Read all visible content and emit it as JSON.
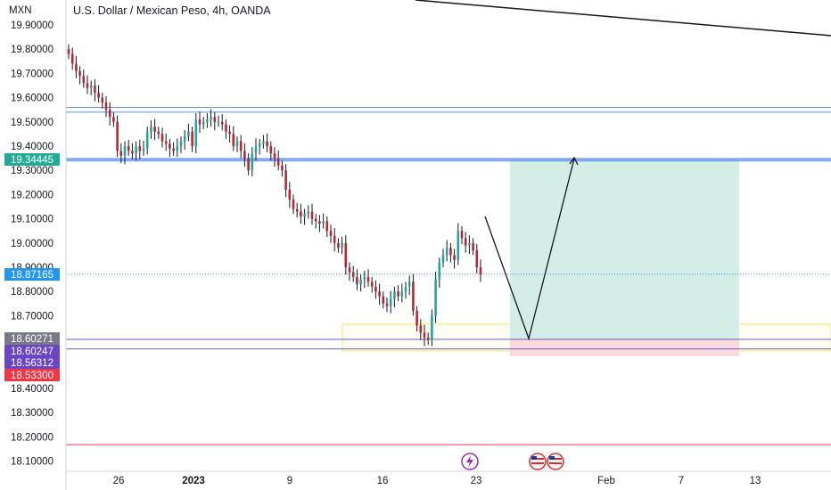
{
  "currency_label": "MXN",
  "symbol_title": "U.S. Dollar / Mexican Peso, 4h, OANDA",
  "colors": {
    "up": "#26a69a",
    "down": "#b22833",
    "wick": "#131722",
    "line_blue": "#5b8ef0",
    "line_purple": "#6a5acd",
    "line_red": "#f23645",
    "yellow_zone": "#f5e663",
    "profit_zone": "#d4ede6",
    "stop_zone": "#fbd9dc",
    "last_price": "#2196f3"
  },
  "icons": {
    "lightning": "lightning-icon",
    "flag": "us-flag-icon"
  },
  "chart_data": {
    "type": "candlestick",
    "title": "U.S. Dollar / Mexican Peso, 4h, OANDA",
    "ylabel": "MXN",
    "ylim": [
      18.05,
      19.95
    ],
    "y_ticks": [
      "19.90000",
      "19.80000",
      "19.70000",
      "19.60000",
      "19.50000",
      "19.40000",
      "19.30000",
      "19.20000",
      "19.10000",
      "19.00000",
      "18.90000",
      "18.80000",
      "18.70000",
      "18.60000",
      "18.50000",
      "18.40000",
      "18.30000",
      "18.20000",
      "18.10000"
    ],
    "x_ticks": [
      "26",
      "2023",
      "9",
      "16",
      "23",
      "Feb",
      "7",
      "13"
    ],
    "candle_closes": [
      19.78,
      19.74,
      19.71,
      19.69,
      19.66,
      19.64,
      19.65,
      19.62,
      19.6,
      19.58,
      19.55,
      19.52,
      19.5,
      19.38,
      19.36,
      19.4,
      19.38,
      19.37,
      19.4,
      19.38,
      19.39,
      19.46,
      19.48,
      19.46,
      19.45,
      19.42,
      19.41,
      19.39,
      19.38,
      19.4,
      19.42,
      19.44,
      19.46,
      19.4,
      19.51,
      19.49,
      19.5,
      19.51,
      19.52,
      19.5,
      19.5,
      19.49,
      19.46,
      19.45,
      19.4,
      19.42,
      19.38,
      19.35,
      19.3,
      19.37,
      19.4,
      19.41,
      19.42,
      19.4,
      19.37,
      19.35,
      19.32,
      19.3,
      19.22,
      19.18,
      19.14,
      19.13,
      19.11,
      19.12,
      19.13,
      19.1,
      19.09,
      19.08,
      19.09,
      19.05,
      19.03,
      19.0,
      18.98,
      19.0,
      18.9,
      18.88,
      18.86,
      18.83,
      18.85,
      18.86,
      18.84,
      18.82,
      18.8,
      18.78,
      18.75,
      18.74,
      18.77,
      18.8,
      18.78,
      18.8,
      18.82,
      18.84,
      18.72,
      18.66,
      18.63,
      18.61,
      18.6,
      18.7,
      18.85,
      18.92,
      18.95,
      18.98,
      18.95,
      18.93,
      19.05,
      19.02,
      18.99,
      19.0,
      18.97,
      18.9,
      18.87
    ],
    "hlines": [
      {
        "price": 19.56,
        "color": "line_blue"
      },
      {
        "price": 19.54,
        "color": "line_blue"
      },
      {
        "price": 19.344,
        "color": "line_blue",
        "thick": true
      },
      {
        "price": 18.6027,
        "color": "line_purple"
      },
      {
        "price": 18.5631,
        "color": "line_purple"
      },
      {
        "price": 18.168,
        "color": "line_red"
      }
    ],
    "last_price": 18.87165,
    "position": {
      "entry": 18.60247,
      "target": 19.34445,
      "stop": 18.533
    },
    "price_tags": [
      {
        "label": "19.34445",
        "price": 19.34445,
        "color": "#22ab94"
      },
      {
        "label": "18.87165",
        "price": 18.87165,
        "color": "#2196f3"
      },
      {
        "label": "18.60271",
        "price": 18.60271,
        "color": "#787b86"
      },
      {
        "label": "18.60247",
        "price": 18.60247,
        "color": "#6a46c6"
      },
      {
        "label": "18.56312",
        "price": 18.56312,
        "color": "#6a46c6"
      },
      {
        "label": "18.53300",
        "price": 18.533,
        "color": "#f23645"
      }
    ]
  }
}
